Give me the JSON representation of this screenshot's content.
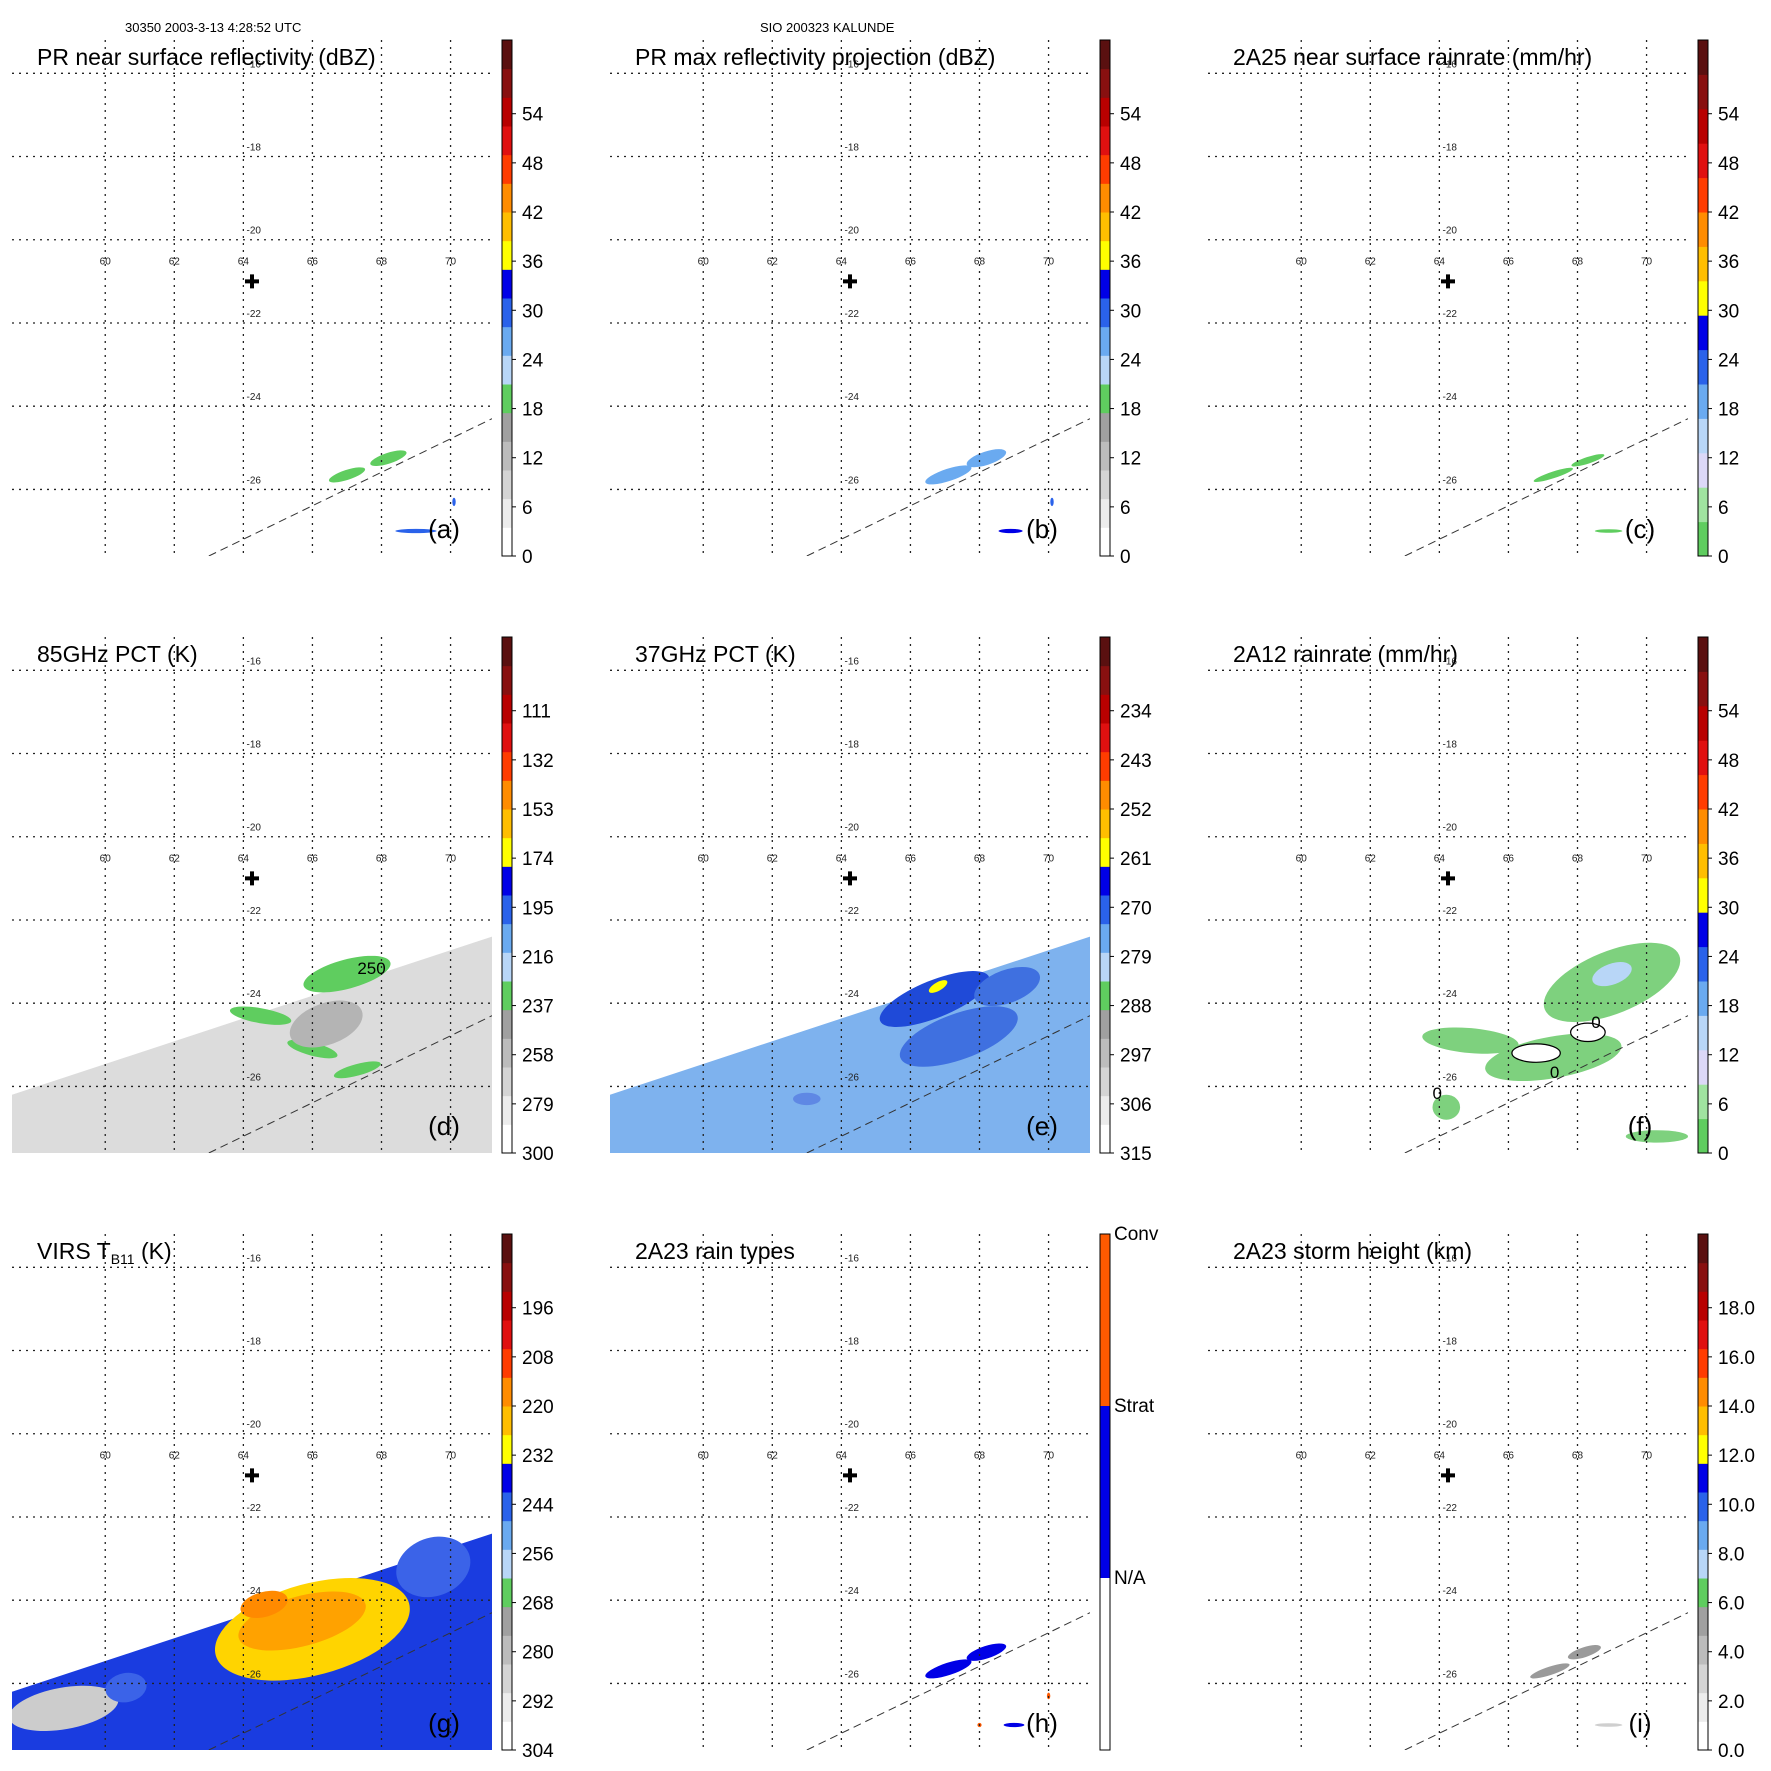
{
  "header": {
    "left": "30350 2003-3-13 4:28:52 UTC",
    "center": "SIO 200323 KALUNDE"
  },
  "chart_data": [
    {
      "type": "heatmap",
      "panel": "(a)",
      "title": "PR near surface reflectivity (dBZ)",
      "colorbar": {
        "ticks": [
          "0",
          "6",
          "12",
          "18",
          "24",
          "30",
          "36",
          "42",
          "48",
          "54"
        ],
        "colors": [
          "#ffffff",
          "#ececec",
          "#d4d4d4",
          "#bcbcbc",
          "#a0a0a0",
          "#5fcd5f",
          "#b8d6f7",
          "#6aaaf0",
          "#2a62ea",
          "#0000e6",
          "#ffff00",
          "#ffbe00",
          "#ff8c00",
          "#ff3c00",
          "#e01010",
          "#b80000",
          "#881010",
          "#5a1010"
        ]
      },
      "contour_labels": [],
      "blobs": [
        {
          "x": 67.0,
          "y": -25.65,
          "rx": 0.55,
          "ry": 0.12,
          "rot": -18,
          "color": "#5fcd5f"
        },
        {
          "x": 68.2,
          "y": -25.25,
          "rx": 0.55,
          "ry": 0.13,
          "rot": -18,
          "color": "#5fcd5f"
        },
        {
          "x": 69.0,
          "y": -27.0,
          "rx": 0.6,
          "ry": 0.05,
          "rot": 0,
          "color": "#2a62ea"
        },
        {
          "x": 70.1,
          "y": -26.3,
          "rx": 0.05,
          "ry": 0.1,
          "rot": 0,
          "color": "#2a62ea"
        }
      ],
      "xlim": [
        57.3,
        71.2
      ],
      "ylim": [
        -27.6,
        -15.2
      ],
      "lon_ticks": [
        "60",
        "62",
        "64",
        "66",
        "68",
        "70"
      ],
      "lat_ticks": [
        "-16",
        "-18",
        "-20",
        "-22",
        "-24",
        "-26"
      ],
      "center_marker": [
        64.25,
        -21.0
      ],
      "swath": null
    },
    {
      "type": "heatmap",
      "panel": "(b)",
      "title": "PR max reflectivity projection (dBZ)",
      "colorbar": {
        "ticks": [
          "0",
          "6",
          "12",
          "18",
          "24",
          "30",
          "36",
          "42",
          "48",
          "54"
        ],
        "colors": [
          "#ffffff",
          "#ececec",
          "#d4d4d4",
          "#bcbcbc",
          "#a0a0a0",
          "#5fcd5f",
          "#b8d6f7",
          "#6aaaf0",
          "#2a62ea",
          "#0000e6",
          "#ffff00",
          "#ffbe00",
          "#ff8c00",
          "#ff3c00",
          "#e01010",
          "#b80000",
          "#881010",
          "#5a1010"
        ]
      },
      "contour_labels": [],
      "blobs": [
        {
          "x": 67.1,
          "y": -25.65,
          "rx": 0.7,
          "ry": 0.15,
          "rot": -18,
          "color": "#6aaaf0"
        },
        {
          "x": 68.2,
          "y": -25.25,
          "rx": 0.6,
          "ry": 0.16,
          "rot": -18,
          "color": "#6aaaf0"
        },
        {
          "x": 68.9,
          "y": -27.0,
          "rx": 0.35,
          "ry": 0.05,
          "rot": 0,
          "color": "#0000e6"
        },
        {
          "x": 70.1,
          "y": -26.3,
          "rx": 0.05,
          "ry": 0.1,
          "rot": 0,
          "color": "#2a62ea"
        }
      ],
      "xlim": [
        57.3,
        71.2
      ],
      "ylim": [
        -27.6,
        -15.2
      ],
      "lon_ticks": [
        "60",
        "62",
        "64",
        "66",
        "68",
        "70"
      ],
      "lat_ticks": [
        "-16",
        "-18",
        "-20",
        "-22",
        "-24",
        "-26"
      ],
      "center_marker": [
        64.25,
        -21.0
      ],
      "swath": null
    },
    {
      "type": "heatmap",
      "panel": "(c)",
      "title": "2A25 near surface rainrate (mm/hr)",
      "colorbar": {
        "ticks": [
          "0",
          "6",
          "12",
          "18",
          "24",
          "30",
          "36",
          "42",
          "48",
          "54"
        ],
        "colors": [
          "#5fcd5f",
          "#a0e3a0",
          "#dcd8f7",
          "#b8d6f7",
          "#6aaaf0",
          "#2a62ea",
          "#0000e6",
          "#ffff00",
          "#ffbe00",
          "#ff8c00",
          "#ff3c00",
          "#e01010",
          "#b80000",
          "#881010",
          "#5a1010"
        ]
      },
      "contour_labels": [],
      "blobs": [
        {
          "x": 67.3,
          "y": -25.65,
          "rx": 0.6,
          "ry": 0.08,
          "rot": -18,
          "color": "#5fcd5f"
        },
        {
          "x": 68.3,
          "y": -25.3,
          "rx": 0.5,
          "ry": 0.08,
          "rot": -18,
          "color": "#5fcd5f"
        },
        {
          "x": 68.9,
          "y": -27.0,
          "rx": 0.4,
          "ry": 0.04,
          "rot": 0,
          "color": "#5fcd5f"
        }
      ],
      "xlim": [
        57.3,
        71.2
      ],
      "ylim": [
        -27.6,
        -15.2
      ],
      "lon_ticks": [
        "60",
        "62",
        "64",
        "66",
        "68",
        "70"
      ],
      "lat_ticks": [
        "-16",
        "-18",
        "-20",
        "-22",
        "-24",
        "-26"
      ],
      "center_marker": [
        64.25,
        -21.0
      ],
      "swath": null
    },
    {
      "type": "heatmap",
      "panel": "(d)",
      "title": "85GHz PCT (K)",
      "colorbar": {
        "ticks": [
          "300",
          "279",
          "258",
          "237",
          "216",
          "195",
          "174",
          "153",
          "132",
          "111"
        ],
        "colors": [
          "#ffffff",
          "#ececec",
          "#d4d4d4",
          "#bcbcbc",
          "#a0a0a0",
          "#5fcd5f",
          "#b8d6f7",
          "#6aaaf0",
          "#2a62ea",
          "#0000e6",
          "#ffff00",
          "#ffbe00",
          "#ff8c00",
          "#ff3c00",
          "#e01010",
          "#b80000",
          "#881010",
          "#5a1010"
        ]
      },
      "contour_labels": [
        {
          "text": "250",
          "x": 67.3,
          "y": -23.3
        }
      ],
      "swath": {
        "fill": "#dcdcdc"
      },
      "blobs": [
        {
          "x": 67.0,
          "y": -23.3,
          "rx": 1.3,
          "ry": 0.35,
          "rot": -15,
          "color": "#5fcd5f"
        },
        {
          "x": 64.5,
          "y": -24.3,
          "rx": 0.9,
          "ry": 0.18,
          "rot": 10,
          "color": "#5fcd5f"
        },
        {
          "x": 66.0,
          "y": -25.1,
          "rx": 0.75,
          "ry": 0.16,
          "rot": 15,
          "color": "#5fcd5f"
        },
        {
          "x": 67.3,
          "y": -25.6,
          "rx": 0.7,
          "ry": 0.14,
          "rot": -15,
          "color": "#5fcd5f"
        },
        {
          "x": 66.4,
          "y": -24.5,
          "rx": 1.1,
          "ry": 0.5,
          "rot": -20,
          "color": "#b4b4b4"
        }
      ],
      "xlim": [
        57.3,
        71.2
      ],
      "ylim": [
        -27.6,
        -15.2
      ],
      "lon_ticks": [
        "60",
        "62",
        "64",
        "66",
        "68",
        "70"
      ],
      "lat_ticks": [
        "-16",
        "-18",
        "-20",
        "-22",
        "-24",
        "-26"
      ],
      "center_marker": [
        64.25,
        -21.0
      ]
    },
    {
      "type": "heatmap",
      "panel": "(e)",
      "title": "37GHz PCT (K)",
      "colorbar": {
        "ticks": [
          "315",
          "306",
          "297",
          "288",
          "279",
          "270",
          "261",
          "252",
          "243",
          "234"
        ],
        "colors": [
          "#ffffff",
          "#ececec",
          "#d4d4d4",
          "#bcbcbc",
          "#a0a0a0",
          "#5fcd5f",
          "#b8d6f7",
          "#6aaaf0",
          "#2a62ea",
          "#0000e6",
          "#ffff00",
          "#ffbe00",
          "#ff8c00",
          "#ff3c00",
          "#e01010",
          "#b80000",
          "#881010",
          "#5a1010"
        ]
      },
      "contour_labels": [],
      "swath": {
        "fill": "#7eb2ee"
      },
      "blobs": [
        {
          "x": 66.7,
          "y": -23.9,
          "rx": 1.7,
          "ry": 0.45,
          "rot": -22,
          "color": "#1f4ad8"
        },
        {
          "x": 67.4,
          "y": -24.8,
          "rx": 1.8,
          "ry": 0.55,
          "rot": -20,
          "color": "#3f70e0"
        },
        {
          "x": 68.8,
          "y": -23.6,
          "rx": 1.0,
          "ry": 0.4,
          "rot": -20,
          "color": "#3f70e0"
        },
        {
          "x": 66.8,
          "y": -23.6,
          "rx": 0.3,
          "ry": 0.1,
          "rot": -30,
          "color": "#ffff00"
        },
        {
          "x": 63.0,
          "y": -26.3,
          "rx": 0.4,
          "ry": 0.15,
          "rot": 0,
          "color": "#5f88e4"
        }
      ],
      "xlim": [
        57.3,
        71.2
      ],
      "ylim": [
        -27.6,
        -15.2
      ],
      "lon_ticks": [
        "60",
        "62",
        "64",
        "66",
        "68",
        "70"
      ],
      "lat_ticks": [
        "-16",
        "-18",
        "-20",
        "-22",
        "-24",
        "-26"
      ],
      "center_marker": [
        64.25,
        -21.0
      ]
    },
    {
      "type": "heatmap",
      "panel": "(f)",
      "title": "2A12 rainrate (mm/hr)",
      "colorbar": {
        "ticks": [
          "0",
          "6",
          "12",
          "18",
          "24",
          "30",
          "36",
          "42",
          "48",
          "54"
        ],
        "colors": [
          "#5fcd5f",
          "#a0e3a0",
          "#dcd8f7",
          "#b8d6f7",
          "#6aaaf0",
          "#2a62ea",
          "#0000e6",
          "#ffff00",
          "#ffbe00",
          "#ff8c00",
          "#ff3c00",
          "#e01010",
          "#b80000",
          "#881010",
          "#5a1010"
        ]
      },
      "contour_labels": [
        {
          "text": "0",
          "x": 68.4,
          "y": -24.6
        },
        {
          "text": "0",
          "x": 67.2,
          "y": -25.8
        },
        {
          "text": "0",
          "x": 63.8,
          "y": -26.3
        }
      ],
      "swath": null,
      "blobs": [
        {
          "x": 69.0,
          "y": -23.5,
          "rx": 2.1,
          "ry": 0.75,
          "rot": -22,
          "color": "#7ed17e"
        },
        {
          "x": 67.3,
          "y": -25.3,
          "rx": 2.0,
          "ry": 0.5,
          "rot": -10,
          "color": "#7ed17e"
        },
        {
          "x": 64.9,
          "y": -24.9,
          "rx": 1.4,
          "ry": 0.3,
          "rot": 5,
          "color": "#7ed17e"
        },
        {
          "x": 64.2,
          "y": -26.5,
          "rx": 0.4,
          "ry": 0.3,
          "rot": 0,
          "color": "#7ed17e"
        },
        {
          "x": 69.0,
          "y": -23.3,
          "rx": 0.6,
          "ry": 0.25,
          "rot": -20,
          "color": "#b8d6f7"
        },
        {
          "x": 68.3,
          "y": -24.7,
          "rx": 0.5,
          "ry": 0.22,
          "rot": 0,
          "color": "#ffffff"
        },
        {
          "x": 66.8,
          "y": -25.2,
          "rx": 0.7,
          "ry": 0.22,
          "rot": 0,
          "color": "#ffffff"
        },
        {
          "x": 70.3,
          "y": -27.2,
          "rx": 0.9,
          "ry": 0.15,
          "rot": 0,
          "color": "#7ed17e"
        }
      ],
      "xlim": [
        57.3,
        71.2
      ],
      "ylim": [
        -27.6,
        -15.2
      ],
      "lon_ticks": [
        "60",
        "62",
        "64",
        "66",
        "68",
        "70"
      ],
      "lat_ticks": [
        "-16",
        "-18",
        "-20",
        "-22",
        "-24",
        "-26"
      ],
      "center_marker": [
        64.25,
        -21.0
      ]
    },
    {
      "type": "heatmap",
      "panel": "(g)",
      "title": "VIRS T",
      "title_sub": "B11",
      "title_tail": " (K)",
      "colorbar": {
        "ticks": [
          "304",
          "292",
          "280",
          "268",
          "256",
          "244",
          "232",
          "220",
          "208",
          "196"
        ],
        "colors": [
          "#ffffff",
          "#ececec",
          "#d4d4d4",
          "#bcbcbc",
          "#a0a0a0",
          "#5fcd5f",
          "#b8d6f7",
          "#6aaaf0",
          "#2a62ea",
          "#0000e6",
          "#ffff00",
          "#ffbe00",
          "#ff8c00",
          "#ff3c00",
          "#e01010",
          "#b80000",
          "#881010",
          "#5a1010"
        ]
      },
      "contour_labels": [],
      "swath": {
        "fill": "#1a3ce0"
      },
      "blobs": [
        {
          "x": 66.0,
          "y": -24.7,
          "rx": 2.9,
          "ry": 1.1,
          "rot": -15,
          "color": "#ffd400"
        },
        {
          "x": 65.7,
          "y": -24.5,
          "rx": 1.9,
          "ry": 0.6,
          "rot": -15,
          "color": "#ffa200"
        },
        {
          "x": 64.6,
          "y": -24.1,
          "rx": 0.7,
          "ry": 0.3,
          "rot": -15,
          "color": "#ff8a00"
        },
        {
          "x": 69.5,
          "y": -23.2,
          "rx": 1.1,
          "ry": 0.7,
          "rot": -20,
          "color": "#3b63e8"
        },
        {
          "x": 58.8,
          "y": -26.6,
          "rx": 1.6,
          "ry": 0.5,
          "rot": -10,
          "color": "#cccccc"
        },
        {
          "x": 60.6,
          "y": -26.1,
          "rx": 0.6,
          "ry": 0.35,
          "rot": -10,
          "color": "#3b63e8"
        }
      ],
      "xlim": [
        57.3,
        71.2
      ],
      "ylim": [
        -27.6,
        -15.2
      ],
      "lon_ticks": [
        "60",
        "62",
        "64",
        "66",
        "68",
        "70"
      ],
      "lat_ticks": [
        "-16",
        "-18",
        "-20",
        "-22",
        "-24",
        "-26"
      ],
      "center_marker": [
        64.25,
        -21.0
      ]
    },
    {
      "type": "heatmap",
      "panel": "(h)",
      "title": "2A23 rain types",
      "colorbar": {
        "categorical": true,
        "labels": [
          "N/A",
          "Strat",
          "Conv"
        ],
        "colors": [
          "#ffffff",
          "#0000e6",
          "#ff5a00"
        ]
      },
      "contour_labels": [],
      "swath": null,
      "blobs": [
        {
          "x": 67.1,
          "y": -25.65,
          "rx": 0.7,
          "ry": 0.15,
          "rot": -18,
          "color": "#0000e6"
        },
        {
          "x": 68.2,
          "y": -25.25,
          "rx": 0.6,
          "ry": 0.15,
          "rot": -18,
          "color": "#0000e6"
        },
        {
          "x": 69.0,
          "y": -27.0,
          "rx": 0.3,
          "ry": 0.05,
          "rot": 0,
          "color": "#0000e6"
        },
        {
          "x": 68.0,
          "y": -27.0,
          "rx": 0.06,
          "ry": 0.05,
          "rot": 0,
          "color": "#ff5a00"
        },
        {
          "x": 70.0,
          "y": -26.3,
          "rx": 0.05,
          "ry": 0.08,
          "rot": 0,
          "color": "#ff5a00"
        }
      ],
      "xlim": [
        57.3,
        71.2
      ],
      "ylim": [
        -27.6,
        -15.2
      ],
      "lon_ticks": [
        "60",
        "62",
        "64",
        "66",
        "68",
        "70"
      ],
      "lat_ticks": [
        "-16",
        "-18",
        "-20",
        "-22",
        "-24",
        "-26"
      ],
      "center_marker": [
        64.25,
        -21.0
      ]
    },
    {
      "type": "heatmap",
      "panel": "(i)",
      "title": "2A23 storm height (km)",
      "colorbar": {
        "ticks": [
          "0.0",
          "2.0",
          "4.0",
          "6.0",
          "8.0",
          "10.0",
          "12.0",
          "14.0",
          "16.0",
          "18.0"
        ],
        "colors": [
          "#ffffff",
          "#ececec",
          "#d4d4d4",
          "#bcbcbc",
          "#a0a0a0",
          "#5fcd5f",
          "#b8d6f7",
          "#6aaaf0",
          "#2a62ea",
          "#0000e6",
          "#ffff00",
          "#ffbe00",
          "#ff8c00",
          "#ff3c00",
          "#e01010",
          "#b80000",
          "#881010",
          "#5a1010"
        ]
      },
      "contour_labels": [],
      "swath": null,
      "blobs": [
        {
          "x": 67.2,
          "y": -25.7,
          "rx": 0.6,
          "ry": 0.1,
          "rot": -18,
          "color": "#9a9a9a"
        },
        {
          "x": 68.2,
          "y": -25.25,
          "rx": 0.5,
          "ry": 0.12,
          "rot": -18,
          "color": "#9a9a9a"
        },
        {
          "x": 68.9,
          "y": -27.0,
          "rx": 0.4,
          "ry": 0.04,
          "rot": 0,
          "color": "#cfcfcf"
        }
      ],
      "xlim": [
        57.3,
        71.2
      ],
      "ylim": [
        -27.6,
        -15.2
      ],
      "lon_ticks": [
        "60",
        "62",
        "64",
        "66",
        "68",
        "70"
      ],
      "lat_ticks": [
        "-16",
        "-18",
        "-20",
        "-22",
        "-24",
        "-26"
      ],
      "center_marker": [
        64.25,
        -21.0
      ]
    }
  ]
}
